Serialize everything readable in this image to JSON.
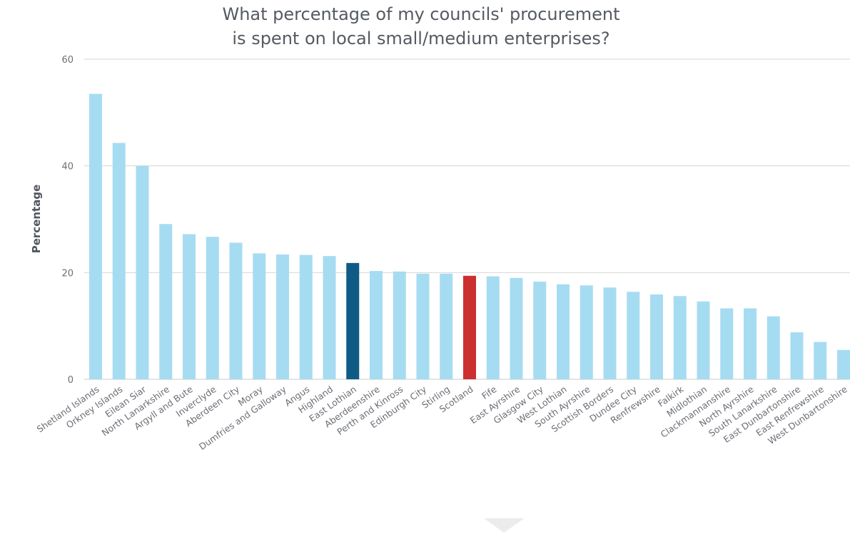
{
  "chart_data": {
    "type": "bar",
    "title_line1": "What percentage of my councils' procurement",
    "title_line2": "is spent on local small/medium enterprises?",
    "ylabel": "Percentage",
    "xlabel": "",
    "ylim": [
      0,
      60
    ],
    "yticks": [
      "0",
      "20",
      "40",
      "60"
    ],
    "grid": true,
    "legend": "none",
    "colors": {
      "default": "#a6dcf2",
      "highlight_dark": "#0f5b86",
      "highlight_red": "#cc2f2f"
    },
    "categories": [
      "Shetland Islands",
      "Orkney Islands",
      "Eilean Siar",
      "North Lanarkshire",
      "Argyll and Bute",
      "Inverclyde",
      "Aberdeen City",
      "Moray",
      "Dumfries and Galloway",
      "Angus",
      "Highland",
      "East Lothian",
      "Aberdeenshire",
      "Perth and Kinross",
      "Edinburgh City",
      "Stirling",
      "Scotland",
      "Fife",
      "East Ayrshire",
      "Glasgow City",
      "West Lothian",
      "South Ayrshire",
      "Scottish Borders",
      "Dundee City",
      "Renfrewshire",
      "Falkirk",
      "Midlothian",
      "Clackmannanshire",
      "North Ayrshire",
      "South Lanarkshire",
      "East Dunbartonshire",
      "East Renfrewshire",
      "West Dunbartonshire"
    ],
    "values": [
      53.5,
      44.3,
      40.0,
      29.1,
      27.2,
      26.7,
      25.6,
      23.6,
      23.4,
      23.3,
      23.1,
      21.8,
      20.3,
      20.2,
      19.8,
      19.8,
      19.4,
      19.3,
      19.0,
      18.3,
      17.8,
      17.6,
      17.2,
      16.4,
      15.9,
      15.6,
      14.6,
      13.3,
      13.3,
      11.8,
      8.8,
      7.0,
      5.5
    ],
    "highlight": {
      "East Lothian": "highlight_dark",
      "Scotland": "highlight_red"
    }
  }
}
